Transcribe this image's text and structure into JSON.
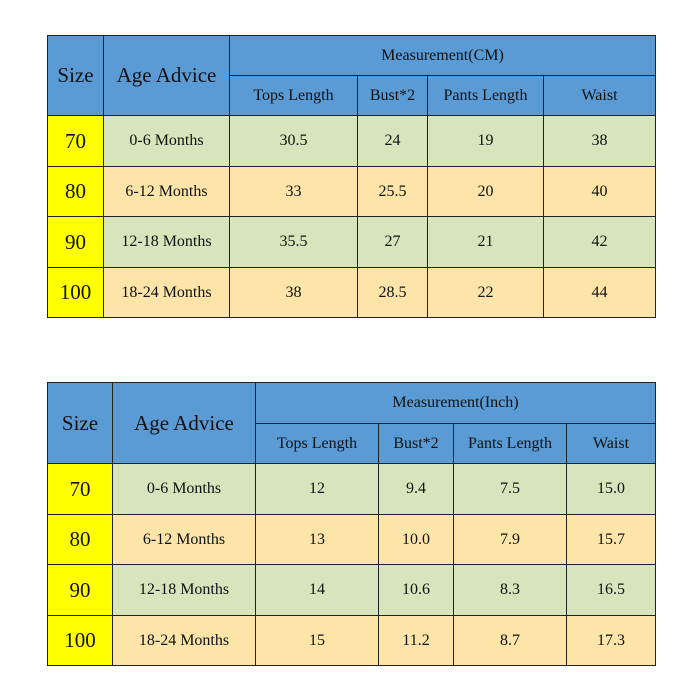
{
  "tables": [
    {
      "size_header": "Size",
      "age_header": "Age Advice",
      "measurement_header": "Measurement(CM)",
      "columns": [
        "Tops Length",
        "Bust*2",
        "Pants Length",
        "Waist"
      ],
      "rows": [
        [
          "70",
          "0-6 Months",
          "30.5",
          "24",
          "19",
          "38"
        ],
        [
          "80",
          "6-12 Months",
          "33",
          "25.5",
          "20",
          "40"
        ],
        [
          "90",
          "12-18 Months",
          "35.5",
          "27",
          "21",
          "42"
        ],
        [
          "100",
          "18-24 Months",
          "38",
          "28.5",
          "22",
          "44"
        ]
      ]
    },
    {
      "size_header": "Size",
      "age_header": "Age Advice",
      "measurement_header": "Measurement(Inch)",
      "columns": [
        "Tops Length",
        "Bust*2",
        "Pants Length",
        "Waist"
      ],
      "rows": [
        [
          "70",
          "0-6 Months",
          "12",
          "9.4",
          "7.5",
          "15.0"
        ],
        [
          "80",
          "6-12 Months",
          "13",
          "10.0",
          "7.9",
          "15.7"
        ],
        [
          "90",
          "12-18 Months",
          "14",
          "10.6",
          "8.3",
          "16.5"
        ],
        [
          "100",
          "18-24 Months",
          "15",
          "11.2",
          "8.7",
          "17.3"
        ]
      ]
    }
  ]
}
